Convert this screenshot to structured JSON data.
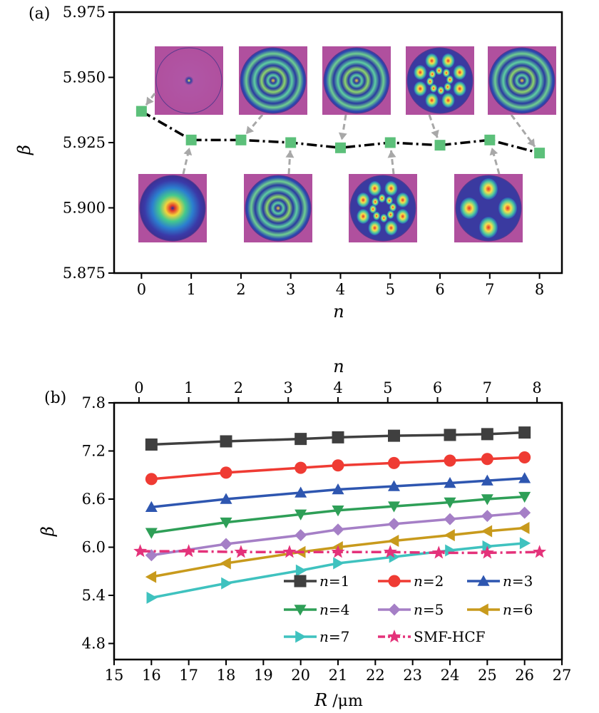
{
  "colors": {
    "axis": "#000000",
    "frame": "#000000",
    "marker_a": "#5cc07a",
    "line_a": "#000000",
    "arrow": "#a8a8a8",
    "inset_bg": "#b0509e",
    "smf": "#e4327a"
  },
  "chart_data": [
    {
      "type": "line",
      "panel_label": "(a)",
      "xlabel": "n",
      "ylabel": "β",
      "xlim": [
        -0.55,
        8.45
      ],
      "ylim": [
        5.875,
        5.975
      ],
      "xticks": [
        0,
        1,
        2,
        3,
        4,
        5,
        6,
        7,
        8
      ],
      "yticks": [
        5.875,
        5.9,
        5.925,
        5.95,
        5.975
      ],
      "ytick_labels": [
        "5.875",
        "5.900",
        "5.925",
        "5.950",
        "5.975"
      ],
      "series": [
        {
          "name": "beta",
          "x": [
            0,
            1,
            2,
            3,
            4,
            5,
            6,
            7,
            8
          ],
          "y": [
            5.937,
            5.926,
            5.926,
            5.925,
            5.923,
            5.925,
            5.924,
            5.926,
            5.921
          ]
        }
      ],
      "insets": [
        {
          "n": 0,
          "pattern": "point",
          "row": "top"
        },
        {
          "n": 1,
          "pattern": "bullseye",
          "row": "bottom"
        },
        {
          "n": 2,
          "pattern": "rings",
          "row": "top"
        },
        {
          "n": 3,
          "pattern": "rings",
          "row": "bottom"
        },
        {
          "n": 4,
          "pattern": "rings",
          "row": "top"
        },
        {
          "n": 5,
          "pattern": "lobes",
          "row": "bottom"
        },
        {
          "n": 6,
          "pattern": "lobes",
          "row": "top"
        },
        {
          "n": 7,
          "pattern": "lobes",
          "row": "bottom"
        },
        {
          "n": 8,
          "pattern": "rings",
          "row": "top"
        }
      ]
    },
    {
      "type": "line",
      "panel_label": "(b)",
      "xlabel": "R /μm",
      "xlabel_var": "R",
      "xlabel_unit": " /μm",
      "ylabel": "β",
      "top_xlabel": "n",
      "xlim": [
        15,
        27
      ],
      "ylim": [
        4.6,
        7.8
      ],
      "xticks": [
        15,
        16,
        17,
        18,
        19,
        20,
        21,
        22,
        23,
        24,
        25,
        26,
        27
      ],
      "yticks": [
        4.8,
        5.4,
        6.0,
        6.6,
        7.2,
        7.8
      ],
      "ytick_labels": [
        "4.8",
        "5.4",
        "6.0",
        "6.6",
        "7.2",
        "7.8"
      ],
      "top_axis": {
        "lim": [
          -0.5,
          8.5
        ],
        "ticks": [
          0,
          1,
          2,
          3,
          4,
          5,
          6,
          7,
          8
        ]
      },
      "series": [
        {
          "name": "n=1",
          "n_value": "1",
          "marker": "square",
          "color": "#3f3f3f",
          "x": [
            16,
            18,
            20,
            21,
            22.5,
            24,
            25,
            26
          ],
          "y": [
            7.28,
            7.32,
            7.35,
            7.37,
            7.39,
            7.4,
            7.41,
            7.43
          ]
        },
        {
          "name": "n=2",
          "n_value": "2",
          "marker": "circle",
          "color": "#ef3b33",
          "x": [
            16,
            18,
            20,
            21,
            22.5,
            24,
            25,
            26
          ],
          "y": [
            6.85,
            6.93,
            6.99,
            7.02,
            7.05,
            7.08,
            7.1,
            7.12
          ]
        },
        {
          "name": "n=3",
          "n_value": "3",
          "marker": "triangle-up",
          "color": "#2e56b0",
          "x": [
            16,
            18,
            20,
            21,
            22.5,
            24,
            25,
            26
          ],
          "y": [
            6.5,
            6.6,
            6.68,
            6.72,
            6.76,
            6.8,
            6.83,
            6.86
          ]
        },
        {
          "name": "n=4",
          "n_value": "4",
          "marker": "triangle-down",
          "color": "#2e9f57",
          "x": [
            16,
            18,
            20,
            21,
            22.5,
            24,
            25,
            26
          ],
          "y": [
            6.18,
            6.31,
            6.41,
            6.46,
            6.51,
            6.56,
            6.6,
            6.63
          ]
        },
        {
          "name": "n=5",
          "n_value": "5",
          "marker": "diamond",
          "color": "#a57fc6",
          "x": [
            16,
            18,
            20,
            21,
            22.5,
            24,
            25,
            26
          ],
          "y": [
            5.9,
            6.04,
            6.15,
            6.22,
            6.29,
            6.35,
            6.39,
            6.43
          ]
        },
        {
          "name": "n=6",
          "n_value": "6",
          "marker": "triangle-left",
          "color": "#c89a1c",
          "x": [
            16,
            18,
            20,
            21,
            22.5,
            24,
            25,
            26
          ],
          "y": [
            5.63,
            5.8,
            5.94,
            6.0,
            6.08,
            6.15,
            6.2,
            6.24
          ]
        },
        {
          "name": "n=7",
          "n_value": "7",
          "marker": "triangle-right",
          "color": "#3fc2bf",
          "x": [
            16,
            18,
            20,
            21,
            22.5,
            24,
            25,
            26
          ],
          "y": [
            5.37,
            5.55,
            5.71,
            5.8,
            5.88,
            5.96,
            6.01,
            6.05
          ]
        },
        {
          "name": "SMF-HCF",
          "marker": "star",
          "color": "#e4327a",
          "dashed": true,
          "x": [
            15.7,
            17.0,
            18.4,
            19.7,
            21.0,
            22.4,
            23.7,
            25.0,
            26.4
          ],
          "y": [
            5.95,
            5.95,
            5.94,
            5.94,
            5.94,
            5.94,
            5.93,
            5.93,
            5.94
          ]
        }
      ],
      "legend": {
        "location": "lower-right",
        "columns": 3
      }
    }
  ]
}
